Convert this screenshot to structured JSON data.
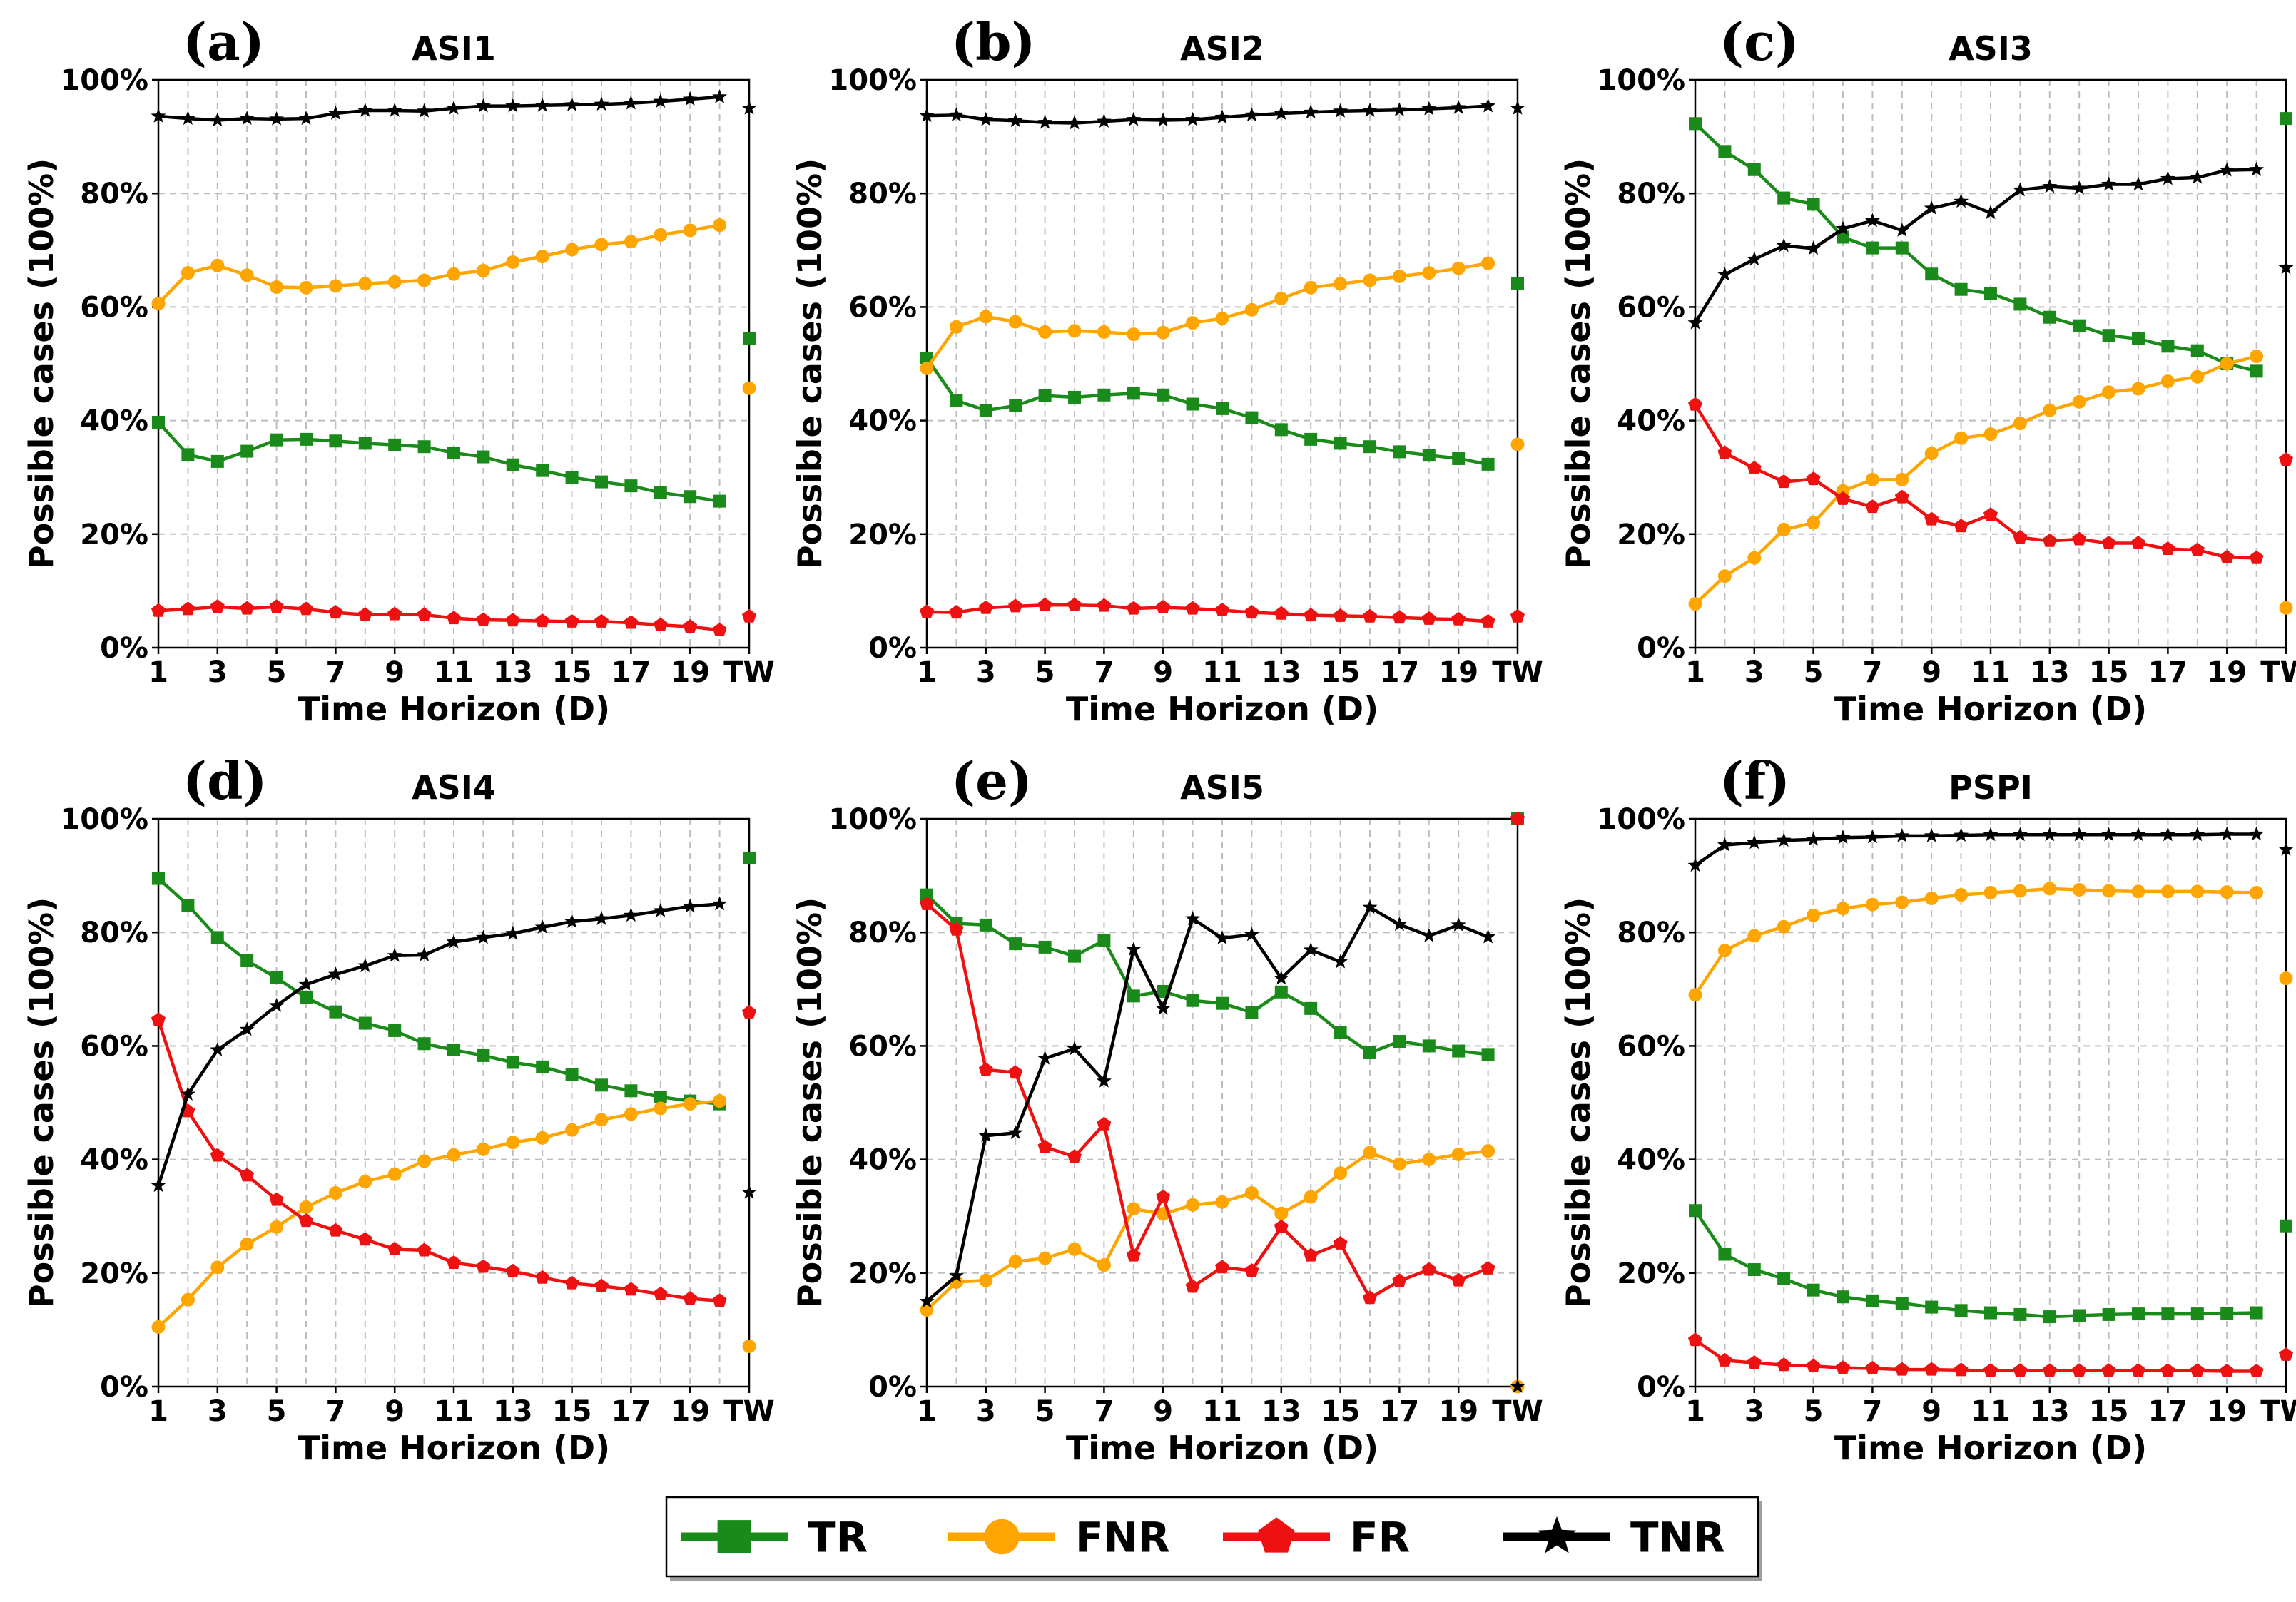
{
  "chart_data": {
    "type": "line",
    "x_categories": [
      "1",
      "2",
      "3",
      "4",
      "5",
      "6",
      "7",
      "8",
      "9",
      "10",
      "11",
      "12",
      "13",
      "14",
      "15",
      "16",
      "17",
      "18",
      "19",
      "20",
      "TW"
    ],
    "x_tick_labels": [
      "1",
      "3",
      "5",
      "7",
      "9",
      "11",
      "13",
      "15",
      "17",
      "19",
      "TW"
    ],
    "y_ticks": [
      "0%",
      "20%",
      "40%",
      "60%",
      "80%",
      "100%"
    ],
    "ylim": [
      0,
      100
    ],
    "xlabel": "Time Horizon (D)",
    "ylabel": "Possible cases (100%)",
    "grid": true,
    "colors": {
      "TR": "#1a8a1a",
      "FNR": "#ffa500",
      "FR": "#ee1111",
      "TNR": "#000000"
    },
    "legend": {
      "placement": "bottom-center",
      "entries": [
        {
          "name": "TR",
          "marker": "square"
        },
        {
          "name": "FNR",
          "marker": "circle"
        },
        {
          "name": "FR",
          "marker": "pentagon"
        },
        {
          "name": "TNR",
          "marker": "star"
        }
      ]
    },
    "panels": [
      {
        "letter": "(a)",
        "title": "ASI1",
        "series": [
          {
            "name": "TR",
            "values": [
              39.7,
              34,
              32.8,
              34.6,
              36.6,
              36.7,
              36.4,
              36,
              35.7,
              35.4,
              34.3,
              33.6,
              32.2,
              31.2,
              30,
              29.2,
              28.5,
              27.3,
              26.6,
              25.8
            ],
            "tw": 54.5
          },
          {
            "name": "FNR",
            "values": [
              60.6,
              66,
              67.3,
              65.6,
              63.5,
              63.4,
              63.7,
              64.1,
              64.4,
              64.7,
              65.8,
              66.4,
              67.9,
              68.9,
              70.1,
              71,
              71.5,
              72.7,
              73.5,
              74.4
            ],
            "tw": 45.7
          },
          {
            "name": "FR",
            "values": [
              6.5,
              6.8,
              7.2,
              6.9,
              7.2,
              6.8,
              6.2,
              5.8,
              5.9,
              5.8,
              5.2,
              4.9,
              4.8,
              4.7,
              4.6,
              4.6,
              4.4,
              4,
              3.7,
              3.1
            ],
            "tw": 5.5
          },
          {
            "name": "TNR",
            "values": [
              93.6,
              93.2,
              92.9,
              93.2,
              93.1,
              93.2,
              94.1,
              94.6,
              94.6,
              94.5,
              95,
              95.4,
              95.4,
              95.5,
              95.6,
              95.7,
              95.9,
              96.2,
              96.6,
              97
            ],
            "tw": 95
          }
        ]
      },
      {
        "letter": "(b)",
        "title": "ASI2",
        "series": [
          {
            "name": "TR",
            "values": [
              51,
              43.5,
              41.8,
              42.6,
              44.4,
              44.1,
              44.5,
              44.8,
              44.5,
              42.9,
              42.1,
              40.5,
              38.4,
              36.7,
              36,
              35.4,
              34.5,
              33.9,
              33.3,
              32.3
            ],
            "tw": 64.2
          },
          {
            "name": "FNR",
            "values": [
              49.2,
              56.5,
              58.3,
              57.4,
              55.6,
              55.8,
              55.6,
              55.2,
              55.5,
              57.2,
              58,
              59.5,
              61.5,
              63.4,
              64.1,
              64.7,
              65.4,
              66,
              66.8,
              67.7
            ],
            "tw": 35.8
          },
          {
            "name": "FR",
            "values": [
              6.3,
              6.2,
              7,
              7.3,
              7.5,
              7.5,
              7.4,
              6.9,
              7.1,
              6.9,
              6.6,
              6.2,
              6,
              5.7,
              5.6,
              5.5,
              5.3,
              5.1,
              5,
              4.6
            ],
            "tw": 5.5
          },
          {
            "name": "TNR",
            "values": [
              93.7,
              93.8,
              93,
              92.8,
              92.5,
              92.4,
              92.7,
              93,
              92.9,
              93,
              93.4,
              93.8,
              94.1,
              94.3,
              94.5,
              94.6,
              94.7,
              94.9,
              95.1,
              95.4
            ],
            "tw": 95
          }
        ]
      },
      {
        "letter": "(c)",
        "title": "ASI3",
        "series": [
          {
            "name": "TR",
            "values": [
              92.3,
              87.4,
              84.2,
              79.2,
              78.1,
              72.3,
              70.4,
              70.4,
              65.8,
              63.1,
              62.4,
              60.5,
              58.2,
              56.7,
              55,
              54.4,
              53.1,
              52.3,
              50,
              48.7
            ],
            "tw": 93.2
          },
          {
            "name": "FNR",
            "values": [
              7.7,
              12.6,
              15.8,
              20.8,
              22,
              27.6,
              29.6,
              29.6,
              34.2,
              36.9,
              37.6,
              39.5,
              41.8,
              43.3,
              45,
              45.6,
              46.9,
              47.7,
              50,
              51.3
            ],
            "tw": 7
          },
          {
            "name": "FR",
            "values": [
              42.8,
              34.3,
              31.6,
              29.2,
              29.7,
              26.2,
              24.8,
              26.5,
              22.6,
              21.4,
              23.4,
              19.4,
              18.8,
              19.1,
              18.4,
              18.4,
              17.4,
              17.2,
              15.9,
              15.8
            ],
            "tw": 33.1
          },
          {
            "name": "TNR",
            "values": [
              57.2,
              65.7,
              68.4,
              70.8,
              70.3,
              73.8,
              75.2,
              73.5,
              77.4,
              78.6,
              76.6,
              80.6,
              81.2,
              80.9,
              81.6,
              81.6,
              82.6,
              82.8,
              84.1,
              84.2
            ],
            "tw": 66.9
          }
        ]
      },
      {
        "letter": "(d)",
        "title": "ASI4",
        "series": [
          {
            "name": "TR",
            "values": [
              89.5,
              84.8,
              79.1,
              75,
              72,
              68.5,
              66,
              64,
              62.7,
              60.4,
              59.3,
              58.3,
              57.1,
              56.3,
              54.9,
              53.1,
              52.1,
              51,
              50.3,
              49.8
            ],
            "tw": 93.1
          },
          {
            "name": "FNR",
            "values": [
              10.5,
              15.3,
              21,
              25.1,
              28.1,
              31.6,
              34.1,
              36.1,
              37.4,
              39.7,
              40.8,
              41.8,
              43,
              43.8,
              45.2,
              47,
              48,
              49,
              49.8,
              50.3
            ],
            "tw": 7.1
          },
          {
            "name": "FR",
            "values": [
              64.6,
              48.5,
              40.7,
              37.2,
              32.9,
              29.2,
              27.5,
              25.9,
              24.2,
              24,
              21.8,
              21.1,
              20.3,
              19.2,
              18.2,
              17.7,
              17.1,
              16.3,
              15.5,
              15.1
            ],
            "tw": 65.9
          },
          {
            "name": "TNR",
            "values": [
              35.4,
              51.5,
              59.3,
              62.9,
              67.1,
              70.8,
              72.6,
              74.1,
              75.9,
              76,
              78.3,
              79.1,
              79.8,
              80.9,
              81.9,
              82.4,
              83,
              83.8,
              84.6,
              85
            ],
            "tw": 34.2
          }
        ]
      },
      {
        "letter": "(e)",
        "title": "ASI5",
        "series": [
          {
            "name": "TR",
            "values": [
              86.6,
              81.6,
              81.3,
              78,
              77.4,
              75.8,
              78.6,
              68.8,
              69.6,
              68,
              67.5,
              65.9,
              69.5,
              66.6,
              62.4,
              58.8,
              60.8,
              60,
              59.1,
              58.5
            ],
            "tw": 100
          },
          {
            "name": "FNR",
            "values": [
              13.5,
              18.4,
              18.7,
              22,
              22.6,
              24.2,
              21.4,
              31.3,
              30.4,
              32,
              32.5,
              34.1,
              30.5,
              33.4,
              37.6,
              41.2,
              39.2,
              40,
              40.9,
              41.5
            ],
            "tw": 0
          },
          {
            "name": "FR",
            "values": [
              85,
              80.5,
              55.8,
              55.3,
              42.2,
              40.5,
              46.2,
              23.1,
              33.4,
              17.6,
              21,
              20.4,
              28.1,
              23.1,
              25.2,
              15.6,
              18.6,
              20.6,
              18.7,
              20.8
            ],
            "tw": 100
          },
          {
            "name": "TNR",
            "values": [
              15,
              19.5,
              44.2,
              44.7,
              57.8,
              59.5,
              53.8,
              77,
              66.6,
              82.4,
              79,
              79.6,
              71.9,
              76.9,
              74.8,
              84.4,
              81.4,
              79.4,
              81.3,
              79.2
            ],
            "tw": 0
          }
        ]
      },
      {
        "letter": "(f)",
        "title": "PSPI",
        "series": [
          {
            "name": "TR",
            "values": [
              31,
              23.3,
              20.6,
              19,
              17,
              15.8,
              15.1,
              14.7,
              14,
              13.4,
              13,
              12.7,
              12.3,
              12.5,
              12.7,
              12.8,
              12.8,
              12.8,
              12.9,
              13
            ],
            "tw": 28.3
          },
          {
            "name": "FNR",
            "values": [
              69,
              76.8,
              79.4,
              81,
              83,
              84.2,
              84.9,
              85.3,
              86,
              86.6,
              87,
              87.3,
              87.7,
              87.5,
              87.3,
              87.2,
              87.2,
              87.2,
              87.1,
              87
            ],
            "tw": 71.9
          },
          {
            "name": "FR",
            "values": [
              8.2,
              4.6,
              4.2,
              3.8,
              3.6,
              3.3,
              3.2,
              3,
              3,
              2.9,
              2.8,
              2.8,
              2.8,
              2.8,
              2.8,
              2.8,
              2.8,
              2.8,
              2.7,
              2.7
            ],
            "tw": 5.6
          },
          {
            "name": "TNR",
            "values": [
              91.8,
              95.4,
              95.8,
              96.2,
              96.4,
              96.7,
              96.8,
              97,
              97,
              97.1,
              97.2,
              97.2,
              97.2,
              97.2,
              97.2,
              97.2,
              97.2,
              97.2,
              97.3,
              97.3
            ],
            "tw": 94.6
          }
        ]
      }
    ]
  }
}
